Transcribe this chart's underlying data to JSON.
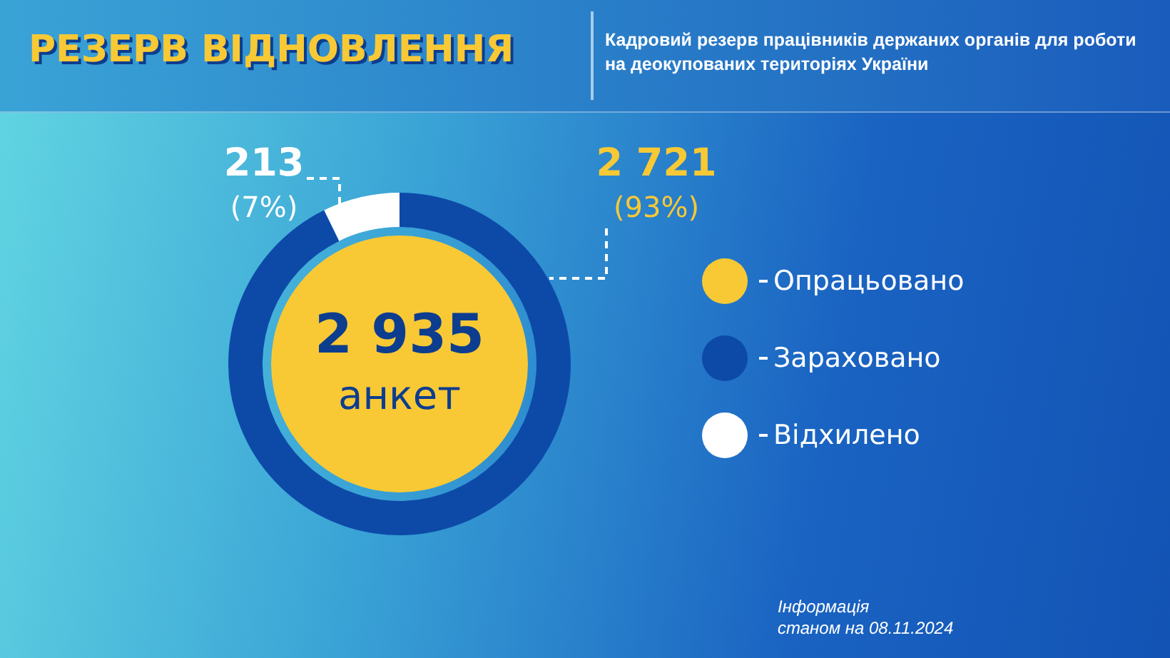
{
  "chart_data": [
    {
      "type": "donut",
      "title": "РЕЗЕРВ ВІДНОВЛЕННЯ",
      "subtitle": "Кадровий резерв працівників держаних органів для роботи на деокупованих територіях України",
      "categories": [
        "Зараховано",
        "Відхилено"
      ],
      "values": [
        2721,
        213
      ],
      "colors": [
        "#0d4aa8",
        "#ffffff"
      ],
      "value_labels": [
        "2 721 (93%)",
        "213 (7%)"
      ],
      "legend": "right",
      "annotations": [
        "Інформація станом на 08.11.2024"
      ]
    },
    {
      "type": "pie",
      "categories": [
        "Опрацьовано"
      ],
      "values": [
        2935
      ],
      "colors": [
        "#f8c935"
      ],
      "value_labels": [
        "2 935 анкет"
      ],
      "legend": "right"
    }
  ]
}
